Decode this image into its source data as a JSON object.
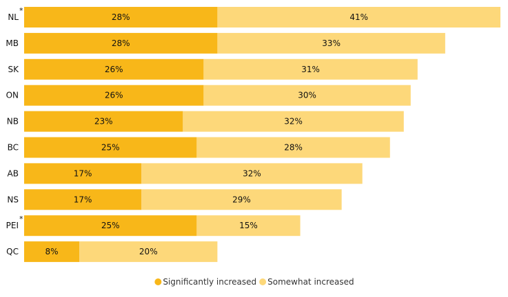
{
  "chart_data": {
    "type": "bar",
    "orientation": "horizontal",
    "stacked": true,
    "categories": [
      "NL",
      "MB",
      "SK",
      "ON",
      "NB",
      "BC",
      "AB",
      "NS",
      "PEI",
      "QC"
    ],
    "category_notes": [
      "*",
      "",
      "",
      "",
      "",
      "",
      "",
      "",
      "*",
      ""
    ],
    "series": [
      {
        "name": "Significantly increased",
        "values": [
          28,
          28,
          26,
          26,
          23,
          25,
          17,
          17,
          25,
          8
        ],
        "color": "#F8B719"
      },
      {
        "name": "Somewhat increased",
        "values": [
          41,
          33,
          31,
          30,
          32,
          28,
          32,
          29,
          15,
          20
        ],
        "color": "#FDD87A"
      }
    ],
    "value_suffix": "%",
    "xlim": [
      0,
      69
    ],
    "grid": false,
    "legend_position": "bottom-center",
    "title": "",
    "xlabel": "",
    "ylabel": ""
  }
}
